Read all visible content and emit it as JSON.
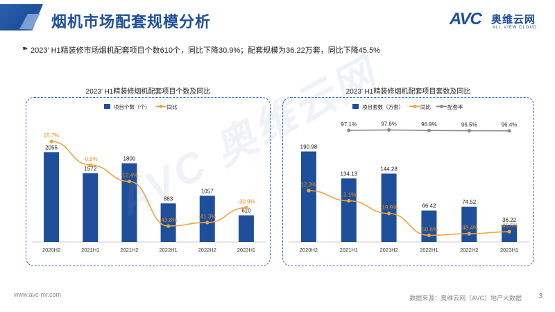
{
  "header": {
    "title": "烟机市场配套规模分析"
  },
  "logo": {
    "brand": "AVC",
    "name_cn": "奥维云网",
    "name_en": "ALL VIEW CLOUD"
  },
  "summary": {
    "icon": "double-arrow-icon",
    "text": "2023’ H1精装修市场烟机配套项目个数610个，同比下降30.9%；配套规模为36.22万套，同比下降45.5%"
  },
  "watermark": "AVC 奥维云网",
  "footer": {
    "url": "www.avc-mr.com",
    "source": "数据来源：奥维云网（AVC）地产大数据",
    "page": "3"
  },
  "colors": {
    "bar": "#1f4f9a",
    "line_yoy": "#f2a33a",
    "line_rate": "#8a8a8a",
    "accent": "#1f4f9a"
  },
  "chart_data": [
    {
      "type": "bar",
      "title": "2023’ H1精装修烟机配套项目个数及同比",
      "categories": [
        "2020H2",
        "2021H1",
        "2021H2",
        "2022H1",
        "2022H2",
        "2023H1"
      ],
      "series": [
        {
          "name": "项目个数（个）",
          "type": "bar",
          "values": [
            2055,
            1572,
            1800,
            883,
            1057,
            610
          ],
          "labels": [
            "2055",
            "1572",
            "1800",
            "883",
            "1057",
            "610"
          ]
        },
        {
          "name": "同比",
          "type": "line",
          "values": [
            15.7,
            -0.9,
            -12.4,
            -43.8,
            -41.3,
            -30.9
          ],
          "labels": [
            "15.7%",
            "-0.9%",
            "-12.4%",
            "-43.8%",
            "-41.3%",
            "-30.9%"
          ]
        }
      ],
      "legend": "top",
      "ylim_bar": [
        0,
        2600
      ],
      "ylim_line": [
        -55,
        25
      ]
    },
    {
      "type": "bar",
      "title": "2023’ H1精装修烟机配套项目套数及同比",
      "categories": [
        "2020H2",
        "2021H1",
        "2021H2",
        "2022H1",
        "2022H2",
        "2023H1"
      ],
      "series": [
        {
          "name": "项目套数（万套）",
          "type": "bar",
          "values": [
            190.98,
            134.13,
            144.28,
            66.42,
            74.52,
            36.22
          ],
          "labels": [
            "190.98",
            "134.13",
            "144.28",
            "66.42",
            "74.52",
            "36.22"
          ]
        },
        {
          "name": "同比",
          "type": "line",
          "values": [
            12.3,
            -2.1,
            -19.9,
            -50.6,
            -48.4,
            -45.5
          ],
          "labels": [
            "12.3%",
            "-2.1%",
            "-19.9%",
            "-50.6%",
            "-48.4%",
            "-45.5%"
          ]
        },
        {
          "name": "配套率",
          "type": "line",
          "values": [
            null,
            97.1,
            97.6,
            96.9,
            96.5,
            96.4
          ],
          "labels": [
            "",
            "97.1%",
            "97.6%",
            "96.9%",
            "96.5%",
            "96.4%"
          ]
        }
      ],
      "legend": "top",
      "ylim_bar": [
        0,
        240
      ],
      "ylim_line": [
        -60,
        100
      ]
    }
  ]
}
